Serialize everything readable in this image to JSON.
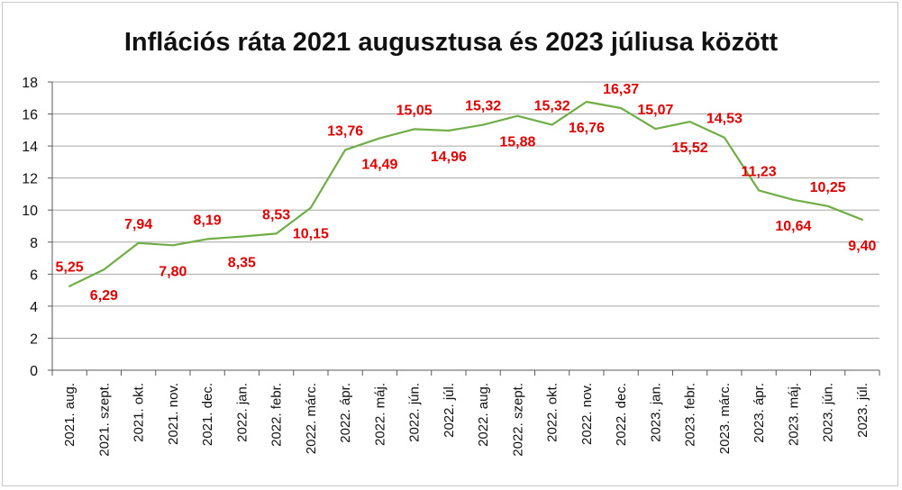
{
  "chart_data": {
    "type": "line",
    "title": "Inflációs ráta 2021 augusztusa és 2023 júliusa között",
    "xlabel": "",
    "ylabel": "",
    "ylim": [
      0,
      18
    ],
    "yticks": [
      "0",
      "2",
      "4",
      "6",
      "8",
      "10",
      "12",
      "14",
      "16",
      "18"
    ],
    "grid": true,
    "legend": "none",
    "categories": [
      "2021. aug.",
      "2021. szept.",
      "2021. okt.",
      "2021. nov.",
      "2021. dec.",
      "2022. jan.",
      "2022. febr.",
      "2022. márc.",
      "2022. ápr.",
      "2022. máj.",
      "2022. jún.",
      "2022. júl.",
      "2022. aug.",
      "2022. szept.",
      "2022. okt.",
      "2022. nov.",
      "2022. dec.",
      "2023. jan.",
      "2023. febr.",
      "2023. márc.",
      "2023. ápr.",
      "2023. máj.",
      "2023. jún.",
      "2023. júl."
    ],
    "series": [
      {
        "values": [
          5.25,
          6.29,
          7.94,
          7.8,
          8.19,
          8.35,
          8.53,
          10.15,
          13.76,
          14.49,
          15.05,
          14.96,
          15.32,
          15.88,
          15.32,
          16.76,
          16.37,
          15.07,
          15.52,
          14.53,
          11.23,
          10.64,
          10.25,
          9.4
        ],
        "labels": [
          "5,25",
          "6,29",
          "7,94",
          "7,80",
          "8,19",
          "8,35",
          "8,53",
          "10,15",
          "13,76",
          "14,49",
          "15,05",
          "14,96",
          "15,32",
          "15,88",
          "15,32",
          "16,76",
          "16,37",
          "15,07",
          "15,52",
          "14,53",
          "11,23",
          "10,64",
          "10,25",
          "9,40"
        ]
      }
    ],
    "colors": {
      "line": "#70ad47",
      "data_label": "#e00000",
      "grid": "#a6a6a6",
      "axis": "#595959"
    }
  }
}
